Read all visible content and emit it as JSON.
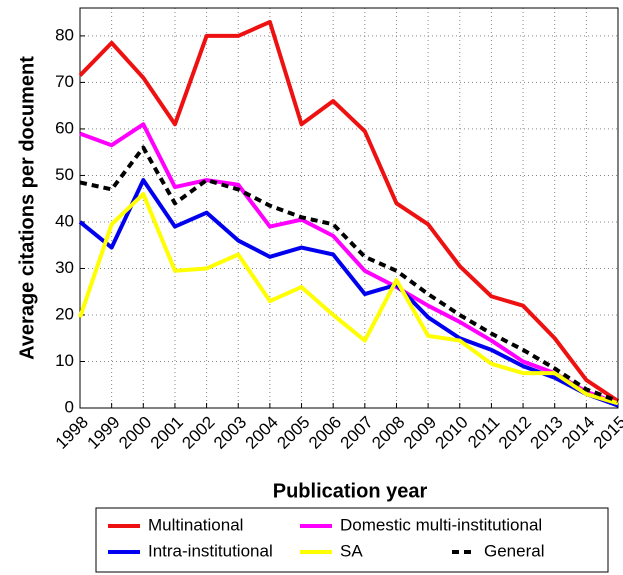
{
  "chart_data": {
    "type": "line",
    "x_label": "Publication year",
    "y_label": "Average citations per document",
    "x": [
      1998,
      1999,
      2000,
      2001,
      2002,
      2003,
      2004,
      2005,
      2006,
      2007,
      2008,
      2009,
      2010,
      2011,
      2012,
      2013,
      2014,
      2015
    ],
    "xlim": [
      1998,
      2015
    ],
    "xticks": [
      1998,
      1999,
      2000,
      2001,
      2002,
      2003,
      2004,
      2005,
      2006,
      2007,
      2008,
      2009,
      2010,
      2011,
      2012,
      2013,
      2014,
      2015
    ],
    "ylim": [
      0,
      86
    ],
    "yticks": [
      0,
      10,
      20,
      30,
      40,
      50,
      60,
      70,
      80
    ],
    "grid": true,
    "legend": "bottom",
    "series": [
      {
        "name": "Multinational",
        "color": "#ee1111",
        "values": [
          71.5,
          78.5,
          71,
          61,
          80,
          80,
          83,
          61,
          66,
          59.5,
          44,
          39.5,
          30.5,
          24,
          22,
          15,
          6,
          1.5
        ]
      },
      {
        "name": "Domestic multi-institutional",
        "color": "#ff00ff",
        "values": [
          59,
          56.5,
          61,
          47.5,
          49,
          48,
          39,
          40.5,
          37,
          29.5,
          26,
          22,
          18.5,
          14.5,
          10,
          7.5,
          3.5,
          1
        ]
      },
      {
        "name": "Intra-institutional",
        "color": "#0000ee",
        "values": [
          40,
          34.5,
          49,
          39,
          42,
          36,
          32.5,
          34.5,
          33,
          24.5,
          26.5,
          19.5,
          15,
          12.5,
          9,
          6.5,
          3,
          0.5
        ]
      },
      {
        "name": "SA",
        "color": "#ffff00",
        "values": [
          19.5,
          39.5,
          46,
          29.5,
          30,
          33,
          23,
          26,
          20,
          14.5,
          27.5,
          15.5,
          14.5,
          9.5,
          7.5,
          7.5,
          3,
          1
        ]
      },
      {
        "name": "General",
        "color": "#000000",
        "dashed": true,
        "values": [
          48.5,
          47,
          56,
          44,
          49,
          47,
          43.5,
          41,
          39.5,
          32.5,
          29.5,
          24.5,
          20,
          16,
          12.5,
          8.5,
          4,
          1.5
        ]
      }
    ]
  }
}
